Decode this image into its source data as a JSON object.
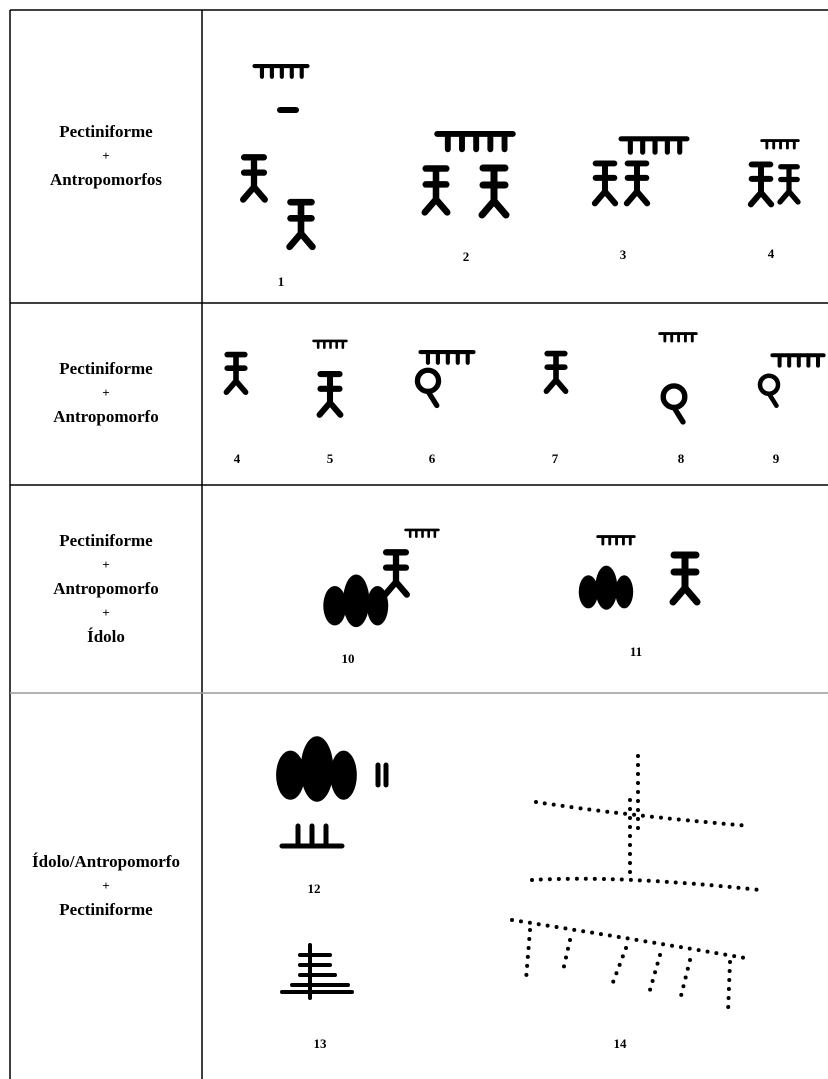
{
  "rows": [
    {
      "label": [
        "Pectiniforme",
        "+",
        "Antropomorfos"
      ],
      "figures": [
        1,
        2,
        3,
        4
      ]
    },
    {
      "label": [
        "Pectiniforme",
        "+",
        "Antropomorfo"
      ],
      "figures": [
        4,
        5,
        6,
        7,
        8,
        9
      ]
    },
    {
      "label": [
        "Pectiniforme",
        "+",
        "Antropomorfo",
        "+",
        "Ídolo"
      ],
      "figures": [
        10,
        11
      ]
    },
    {
      "label": [
        "Ídolo/Antropomorfo",
        "+",
        "Pectiniforme"
      ],
      "figures": [
        12,
        13,
        14
      ]
    }
  ]
}
